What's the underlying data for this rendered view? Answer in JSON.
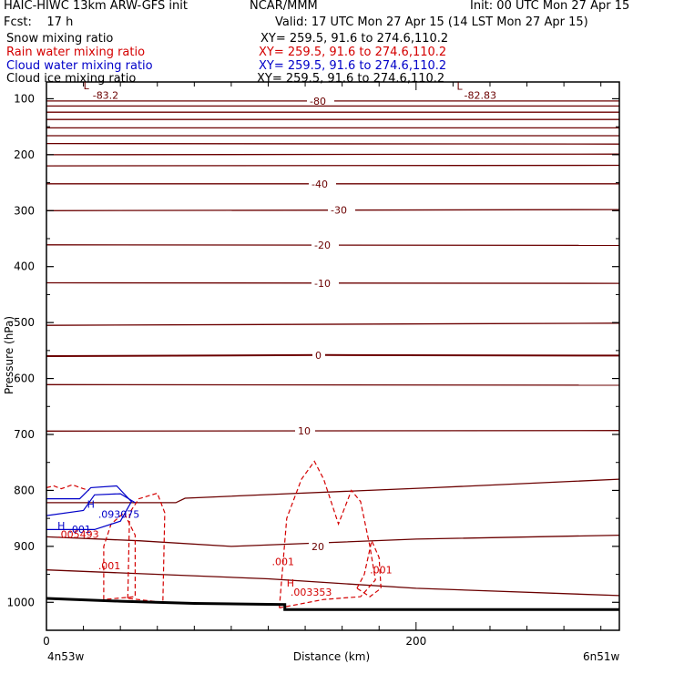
{
  "header": {
    "title_left": "HAIC-HIWC 13km ARW-GFS init",
    "center": "NCAR/MMM",
    "init": "Init: 00 UTC Mon 27 Apr 15",
    "fcst": "Fcst:    17 h",
    "valid": "Valid: 17 UTC Mon 27 Apr 15 (14 LST Mon 27 Apr 15)"
  },
  "legend": [
    {
      "label": "Snow mixing ratio",
      "xy": "XY= 259.5, 91.6 to 274.6,110.2",
      "color": "#000000"
    },
    {
      "label": "Rain water mixing ratio",
      "xy": "XY= 259.5, 91.6 to 274.6,110.2",
      "color": "#d40000"
    },
    {
      "label": "Cloud water mixing ratio",
      "xy": "XY= 259.5, 91.6 to 274.6,110.2",
      "color": "#0000c8"
    },
    {
      "label": "Cloud ice mixing ratio",
      "xy": "XY= 259.5, 91.6 to 274.6,110.2",
      "color": "#000000"
    }
  ],
  "chart_data": {
    "type": "line",
    "ylabel": "Pressure (hPa)",
    "xlabel": "Distance (km)",
    "x_left_label": "4n53w",
    "x_right_label": "6n51w",
    "xlim": [
      0,
      310
    ],
    "ylim": [
      1050,
      70
    ],
    "x_ticks": [
      0,
      200
    ],
    "y_ticks": [
      100,
      200,
      300,
      400,
      500,
      600,
      700,
      800,
      900,
      1000
    ],
    "colors": {
      "temperature": "#6b0000",
      "rain": "#d40000",
      "cloud": "#0000c8",
      "ground": "#000000"
    },
    "temperature_isotherms": [
      {
        "label": "-80",
        "points": [
          [
            0,
            104
          ],
          [
            310,
            104
          ]
        ]
      },
      {
        "label": "",
        "points": [
          [
            0,
            113
          ],
          [
            310,
            113
          ]
        ]
      },
      {
        "label": "",
        "points": [
          [
            0,
            124
          ],
          [
            310,
            124
          ]
        ]
      },
      {
        "label": "",
        "points": [
          [
            0,
            137
          ],
          [
            310,
            137
          ]
        ]
      },
      {
        "label": "",
        "points": [
          [
            0,
            152
          ],
          [
            310,
            152
          ]
        ]
      },
      {
        "label": "",
        "points": [
          [
            0,
            166
          ],
          [
            310,
            166
          ]
        ]
      },
      {
        "label": "",
        "points": [
          [
            0,
            180
          ],
          [
            310,
            181
          ]
        ]
      },
      {
        "label": "",
        "points": [
          [
            0,
            200
          ],
          [
            310,
            199
          ]
        ]
      },
      {
        "label": "",
        "points": [
          [
            0,
            220
          ],
          [
            310,
            219
          ]
        ]
      },
      {
        "label": "-40",
        "points": [
          [
            0,
            252
          ],
          [
            310,
            252
          ]
        ]
      },
      {
        "label": "-30",
        "points": [
          [
            0,
            300
          ],
          [
            310,
            298
          ]
        ]
      },
      {
        "label": "-20",
        "points": [
          [
            0,
            361
          ],
          [
            310,
            362
          ]
        ]
      },
      {
        "label": "-10",
        "points": [
          [
            0,
            429
          ],
          [
            310,
            430
          ]
        ]
      },
      {
        "label": "",
        "points": [
          [
            0,
            505
          ],
          [
            310,
            501
          ]
        ]
      },
      {
        "label": "0",
        "points": [
          [
            0,
            560
          ],
          [
            150,
            558
          ],
          [
            310,
            559
          ]
        ]
      },
      {
        "label": "",
        "points": [
          [
            0,
            611
          ],
          [
            310,
            612
          ]
        ]
      },
      {
        "label": "10",
        "points": [
          [
            0,
            694
          ],
          [
            310,
            693
          ]
        ]
      },
      {
        "label": "",
        "points": [
          [
            0,
            822
          ],
          [
            70,
            822
          ],
          [
            75,
            814
          ],
          [
            130,
            806
          ],
          [
            210,
            795
          ],
          [
            310,
            780
          ]
        ]
      },
      {
        "label": "20",
        "points": [
          [
            0,
            883
          ],
          [
            50,
            890
          ],
          [
            100,
            900
          ],
          [
            200,
            887
          ],
          [
            310,
            880
          ]
        ]
      },
      {
        "label": "",
        "points": [
          [
            0,
            942
          ],
          [
            120,
            958
          ],
          [
            200,
            975
          ],
          [
            310,
            988
          ]
        ]
      }
    ],
    "extrema_labels": [
      {
        "text": "L",
        "x": 20,
        "y": 83
      },
      {
        "text": "-83.2",
        "x": 25,
        "y": 100
      },
      {
        "text": "L",
        "x": 222,
        "y": 84
      },
      {
        "text": "-82.83",
        "x": 226,
        "y": 100
      }
    ],
    "rain_contours": [
      {
        "label": ".001",
        "points": [
          [
            0,
            795
          ],
          [
            4,
            792
          ],
          [
            8,
            797
          ],
          [
            14,
            790
          ],
          [
            20,
            797
          ],
          [
            23,
            800
          ]
        ]
      },
      {
        "label": ".001",
        "points": [
          [
            31,
            995
          ],
          [
            31,
            900
          ],
          [
            35,
            860
          ],
          [
            42,
            840
          ],
          [
            48,
            880
          ],
          [
            48,
            990
          ],
          [
            31,
            995
          ]
        ]
      },
      {
        "label": ".001",
        "points": [
          [
            44,
            993
          ],
          [
            45,
            840
          ],
          [
            50,
            815
          ],
          [
            60,
            805
          ],
          [
            64,
            840
          ],
          [
            63,
            1000
          ],
          [
            44,
            993
          ]
        ]
      },
      {
        "label": ".001",
        "points": [
          [
            126,
            1010
          ],
          [
            130,
            850
          ],
          [
            138,
            780
          ],
          [
            145,
            748
          ],
          [
            150,
            780
          ],
          [
            158,
            860
          ],
          [
            165,
            800
          ],
          [
            170,
            820
          ],
          [
            175,
            900
          ],
          [
            178,
            960
          ],
          [
            170,
            990
          ],
          [
            150,
            995
          ],
          [
            126,
            1010
          ]
        ]
      },
      {
        "label": ".001",
        "points": [
          [
            168,
            975
          ],
          [
            172,
            950
          ],
          [
            176,
            890
          ],
          [
            180,
            920
          ],
          [
            181,
            975
          ],
          [
            175,
            990
          ],
          [
            168,
            975
          ]
        ]
      }
    ],
    "cloud_contours": [
      {
        "label": ".001",
        "points": [
          [
            0,
            815
          ],
          [
            18,
            815
          ],
          [
            24,
            795
          ],
          [
            38,
            792
          ],
          [
            46,
            820
          ],
          [
            40,
            855
          ],
          [
            26,
            870
          ],
          [
            10,
            870
          ],
          [
            0,
            870
          ]
        ]
      },
      {
        "label": "",
        "points": [
          [
            0,
            845
          ],
          [
            20,
            836
          ],
          [
            26,
            808
          ],
          [
            40,
            806
          ],
          [
            48,
            822
          ]
        ]
      }
    ],
    "value_labels": [
      {
        "text": "H",
        "color": "cloud",
        "x": 22,
        "y": 831
      },
      {
        "text": ".093075",
        "color": "cloud",
        "x": 28,
        "y": 849
      },
      {
        "text": "H",
        "color": "cloud",
        "x": 6,
        "y": 869
      },
      {
        "text": ".001",
        "color": "cloud",
        "x": 12,
        "y": 876
      },
      {
        "text": ".005493",
        "color": "rain",
        "x": 6,
        "y": 885
      },
      {
        "text": ".001",
        "color": "rain",
        "x": 28,
        "y": 941
      },
      {
        "text": ".001",
        "color": "rain",
        "x": 122,
        "y": 934
      },
      {
        "text": "H",
        "color": "rain",
        "x": 130,
        "y": 972
      },
      {
        "text": ".003353",
        "color": "rain",
        "x": 132,
        "y": 988
      },
      {
        "text": ".001",
        "color": "rain",
        "x": 175,
        "y": 948
      }
    ],
    "terrain_pressure": [
      [
        0,
        993
      ],
      [
        40,
        998
      ],
      [
        80,
        1002
      ],
      [
        129,
        1004
      ],
      [
        129,
        1013
      ],
      [
        200,
        1013
      ],
      [
        310,
        1013
      ]
    ]
  }
}
